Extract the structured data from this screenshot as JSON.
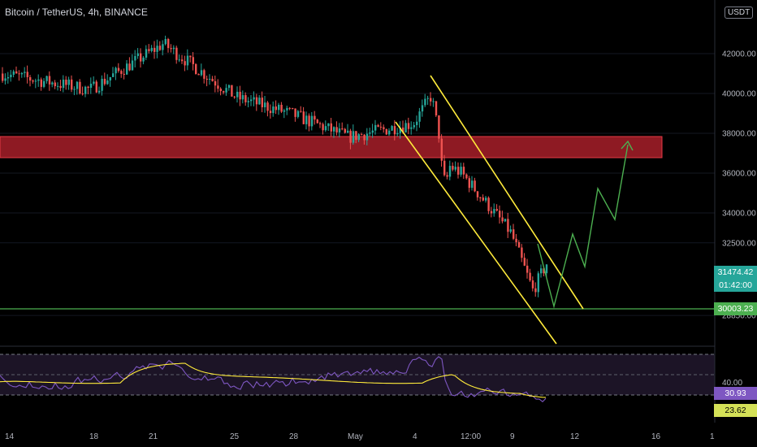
{
  "header": {
    "ticker": "Bitcoin / TetherUS, 4h, BINANCE"
  },
  "currency": "USDT",
  "badges": {
    "last_price": "31474.42",
    "countdown": "01:42:00",
    "support_price": "30003.23",
    "rsi_value": "30.93",
    "rsi_ma_value": "23.62"
  },
  "colors": {
    "up": "#26a69a",
    "down": "#ef5350",
    "resistance_zone": "#b2202c",
    "channel": "#ffeb3b",
    "projection": "#4caf50",
    "rsi_line": "#7e57c2",
    "rsi_ma": "#ffeb3b",
    "support": "#4caf50"
  },
  "chart_data": [
    {
      "type": "candlestick",
      "price_ticks": [
        "42000.00",
        "40000.00",
        "38000.00",
        "36000.00",
        "34000.00",
        "32500.00",
        "28850.00"
      ],
      "x_ticks": [
        "14",
        "18",
        "21",
        "25",
        "28",
        "May",
        "4",
        "12:00",
        "9",
        "12",
        "16",
        "1"
      ],
      "approx_path": [
        {
          "x": "14",
          "price": 41000
        },
        {
          "x": "18",
          "price": 40200
        },
        {
          "x": "21",
          "price": 42500
        },
        {
          "x": "25",
          "price": 39800
        },
        {
          "x": "28",
          "price": 39000
        },
        {
          "x": "May",
          "price": 37800
        },
        {
          "x": "4",
          "price": 38500
        },
        {
          "x": "May 6",
          "price": 39900
        },
        {
          "x": "May 7",
          "price": 36500
        },
        {
          "x": "12:00",
          "price": 36000
        },
        {
          "x": "9",
          "price": 33000
        },
        {
          "x": "May 10",
          "price": 30100
        },
        {
          "x": "May 11",
          "price": 31474.42
        }
      ],
      "last_price": 31474.42,
      "support_level": 30003.23,
      "resistance_zone": {
        "low": 36700,
        "high": 37700
      },
      "annotations": [
        "descending channel",
        "projected path arrow"
      ]
    },
    {
      "type": "line",
      "indicator": "RSI",
      "value": 30.93,
      "ma_value": 23.62,
      "y_tick": "40.00"
    }
  ]
}
